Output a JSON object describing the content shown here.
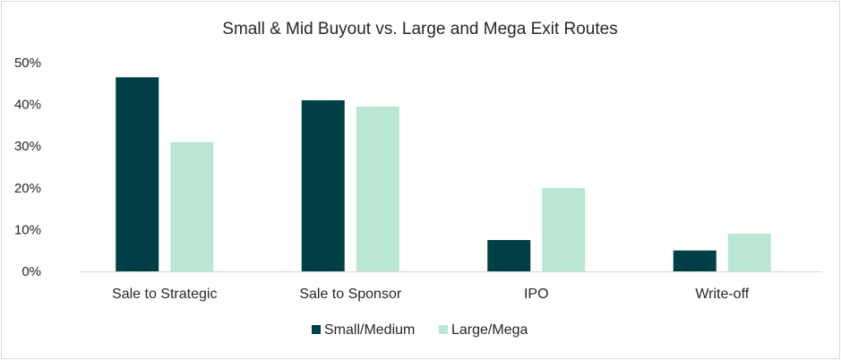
{
  "chart_data": {
    "type": "bar",
    "title": "Small & Mid Buyout vs. Large and Mega Exit Routes",
    "categories": [
      "Sale to Strategic",
      "Sale to Sponsor",
      "IPO",
      "Write-off"
    ],
    "series": [
      {
        "name": "Small/Medium",
        "values": [
          46.5,
          41.0,
          7.5,
          5.0
        ],
        "color": "#003f46"
      },
      {
        "name": "Large/Mega",
        "values": [
          31.0,
          39.5,
          20.0,
          9.0
        ],
        "color": "#bae6d4"
      }
    ],
    "ylim": [
      0,
      50
    ],
    "yticks": [
      "0%",
      "10%",
      "20%",
      "30%",
      "40%",
      "50%"
    ],
    "ytick_values": [
      0,
      10,
      20,
      30,
      40,
      50
    ],
    "grid": false,
    "legend": "bottom",
    "axis_color": "#d9d9d9"
  }
}
